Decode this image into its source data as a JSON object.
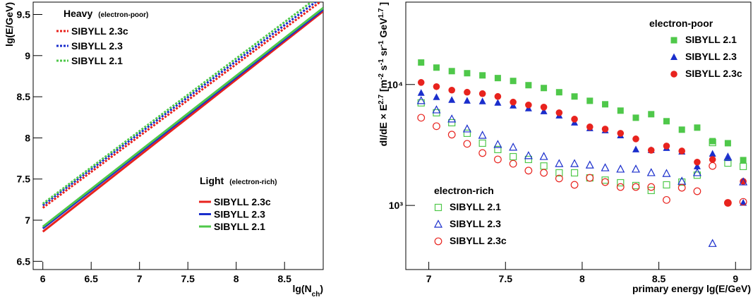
{
  "chart_data": [
    {
      "type": "line",
      "xlabel": [
        {
          "text": "lg(N"
        },
        {
          "text": "ch",
          "sub": true
        },
        {
          "text": ")"
        }
      ],
      "ylabel": [
        {
          "text": "lg(E/GeV)"
        }
      ],
      "xlim": [
        5.9,
        8.9
      ],
      "ylim": [
        6.4,
        9.65
      ],
      "xticks": [
        6,
        6.5,
        7,
        7.5,
        8,
        8.5
      ],
      "yticks": [
        6.5,
        7,
        7.5,
        8,
        8.5,
        9,
        9.5
      ],
      "x": [
        6,
        8.9
      ],
      "series_groups": [
        {
          "title": "Heavy",
          "note": "(electron-poor)",
          "style": "dashed",
          "series": [
            {
              "name": "SIBYLL 2.3c",
              "color": "#e8231e",
              "values": [
                7.15,
                9.68
              ]
            },
            {
              "name": "SIBYLL 2.3",
              "color": "#1a2ecc",
              "values": [
                7.18,
                9.72
              ]
            },
            {
              "name": "SIBYLL 2.1",
              "color": "#4fc84a",
              "values": [
                7.2,
                9.76
              ]
            }
          ]
        },
        {
          "title": "Light",
          "note": "(electron-rich)",
          "style": "solid",
          "series": [
            {
              "name": "SIBYLL 2.3c",
              "color": "#e8231e",
              "values": [
                6.86,
                9.54
              ]
            },
            {
              "name": "SIBYLL 2.3",
              "color": "#1a2ecc",
              "values": [
                6.9,
                9.56
              ]
            },
            {
              "name": "SIBYLL 2.1",
              "color": "#4fc84a",
              "values": [
                6.92,
                9.58
              ]
            }
          ]
        }
      ]
    },
    {
      "type": "scatter",
      "log_y": true,
      "xlabel": [
        {
          "text": "primary energy lg(E/GeV)"
        }
      ],
      "ylabel": [
        {
          "text": "dI/dE × E"
        },
        {
          "text": "2.7",
          "sup": true
        },
        {
          "text": " [m"
        },
        {
          "text": "-2",
          "sup": true
        },
        {
          "text": " s"
        },
        {
          "text": "-1",
          "sup": true
        },
        {
          "text": " sr"
        },
        {
          "text": "-1",
          "sup": true
        },
        {
          "text": " GeV"
        },
        {
          "text": "1.7",
          "sup": true
        },
        {
          "text": " ]"
        }
      ],
      "xlim": [
        6.85,
        9.1
      ],
      "ylim": [
        295,
        48000
      ],
      "xticks": [
        7,
        7.5,
        8,
        8.5,
        9
      ],
      "yticks": [
        {
          "value": 1000,
          "label": "10³"
        },
        {
          "value": 10000,
          "label": "10⁴"
        }
      ],
      "x": [
        6.95,
        7.05,
        7.15,
        7.25,
        7.35,
        7.45,
        7.55,
        7.65,
        7.75,
        7.85,
        7.95,
        8.05,
        8.15,
        8.25,
        8.35,
        8.45,
        8.55,
        8.65,
        8.75,
        8.85,
        8.95,
        9.05
      ],
      "series_groups": [
        {
          "title": "electron-poor",
          "filled": true,
          "series": [
            {
              "name": "SIBYLL 2.1",
              "color": "#4fc84a",
              "marker": "square",
              "values": [
                15200,
                13800,
                12900,
                12400,
                11900,
                11300,
                10700,
                9870,
                9350,
                8630,
                7960,
                7330,
                6860,
                6080,
                5310,
                5680,
                4970,
                4230,
                4400,
                3400,
                3270,
                2370
              ]
            },
            {
              "name": "SIBYLL 2.3",
              "color": "#1a2ecc",
              "marker": "triangle",
              "values": [
                8510,
                7850,
                7440,
                7330,
                7240,
                7050,
                6680,
                6330,
                5990,
                5530,
                4830,
                4340,
                4170,
                3790,
                2900,
                2860,
                2980,
                2780,
                2100,
                2670,
                2460,
                1050
              ]
            },
            {
              "name": "SIBYLL 2.3c",
              "color": "#e8231e",
              "marker": "circle",
              "values": [
                10400,
                9600,
                8980,
                8630,
                8400,
                7960,
                7150,
                6770,
                6500,
                5840,
                5170,
                4460,
                4280,
                3950,
                3550,
                2860,
                3100,
                2820,
                2280,
                2400,
                1050,
                1580
              ]
            }
          ]
        },
        {
          "title": "electron-rich",
          "filled": false,
          "series": [
            {
              "name": "SIBYLL 2.1",
              "color": "#4fc84a",
              "marker": "square",
              "values": [
                7050,
                5840,
                4830,
                3950,
                3270,
                2900,
                2530,
                2400,
                2120,
                1860,
                1860,
                1690,
                1620,
                1540,
                1460,
                1330,
                1480,
                1560,
                1780,
                3310,
                2240,
                2100
              ]
            },
            {
              "name": "SIBYLL 2.3",
              "color": "#1a2ecc",
              "marker": "triangle",
              "values": [
                7330,
                6150,
                5170,
                4280,
                3790,
                3180,
                3020,
                2570,
                2530,
                2210,
                2210,
                2150,
                2040,
                1990,
                1990,
                1860,
                1830,
                1580,
                1860,
                483,
                2500,
                1560
              ]
            },
            {
              "name": "SIBYLL 2.3c",
              "color": "#e8231e",
              "marker": "circle",
              "values": [
                5310,
                4520,
                3850,
                3230,
                2710,
                2400,
                2210,
                1940,
                1860,
                1670,
                1480,
                1690,
                1560,
                1420,
                1420,
                1420,
                1110,
                1400,
                1310,
                2120,
                1050,
                1070
              ]
            }
          ]
        }
      ]
    }
  ]
}
